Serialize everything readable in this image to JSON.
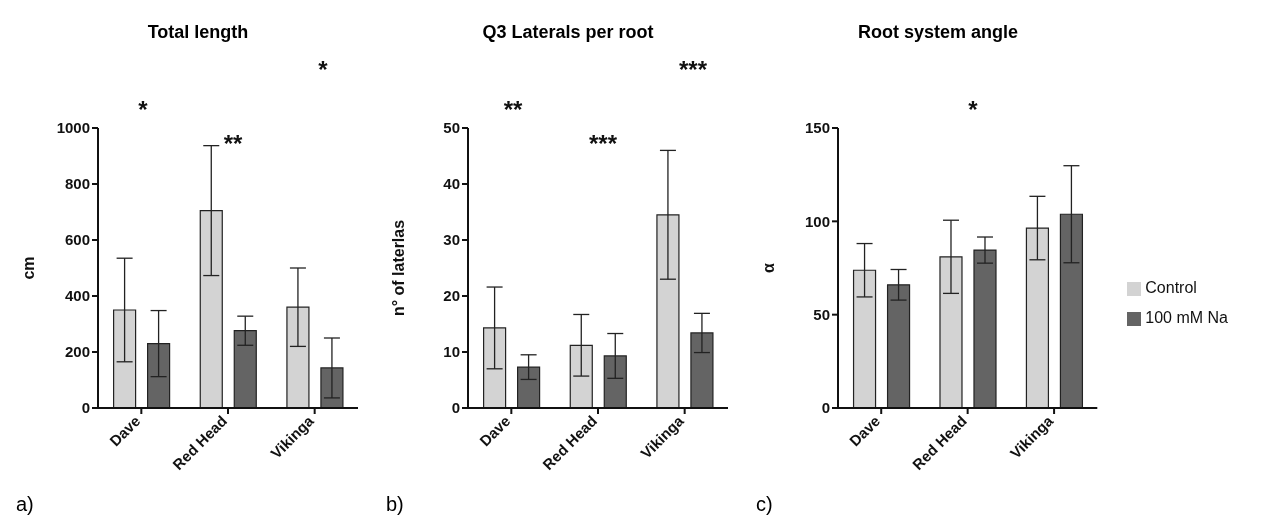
{
  "chart_data": [
    {
      "type": "bar",
      "title": "Total length",
      "ylabel": "cm",
      "categories": [
        "Dave",
        "Red Head",
        "Vikinga"
      ],
      "ylim": [
        0,
        1000
      ],
      "yticks": [
        0,
        200,
        400,
        600,
        800,
        1000
      ],
      "grid": false,
      "legend": false,
      "series": [
        {
          "color": "#d3d3d3",
          "values": [
            350,
            705,
            360
          ],
          "errors": [
            185,
            232,
            140
          ]
        },
        {
          "color": "#646464",
          "values": [
            230,
            276,
            143
          ],
          "errors": [
            118,
            52,
            107
          ]
        }
      ],
      "annotations": [
        "a)",
        "*",
        "**",
        "*"
      ]
    },
    {
      "type": "bar",
      "title": "Q3 Laterals per root",
      "ylabel": "n° of laterlas",
      "categories": [
        "Dave",
        "Red Head",
        "Vikinga"
      ],
      "ylim": [
        0,
        50
      ],
      "yticks": [
        0,
        10,
        20,
        30,
        40,
        50
      ],
      "grid": false,
      "legend": false,
      "series": [
        {
          "color": "#d3d3d3",
          "values": [
            14.3,
            11.2,
            34.5
          ],
          "errors": [
            7.3,
            5.5,
            11.5
          ]
        },
        {
          "color": "#646464",
          "values": [
            7.3,
            9.3,
            13.4
          ],
          "errors": [
            2.2,
            4,
            3.5
          ]
        }
      ],
      "annotations": [
        "b)",
        "**",
        "***",
        "***"
      ]
    },
    {
      "type": "bar",
      "title": "Root system angle",
      "ylabel": "α",
      "categories": [
        "Dave",
        "Red Head",
        "Vikinga"
      ],
      "ylim": [
        0,
        150
      ],
      "yticks": [
        0,
        50,
        100,
        150
      ],
      "grid": false,
      "legend": "right",
      "series": [
        {
          "name": "Control",
          "color": "#d3d3d3",
          "values": [
            73.8,
            81,
            96.4
          ],
          "errors": [
            14.3,
            19.6,
            17
          ]
        },
        {
          "name": "100 mM Na",
          "color": "#646464",
          "values": [
            66,
            84.6,
            103.8
          ],
          "errors": [
            8.2,
            7,
            26
          ]
        }
      ],
      "annotations": [
        "c)",
        "*"
      ]
    }
  ]
}
